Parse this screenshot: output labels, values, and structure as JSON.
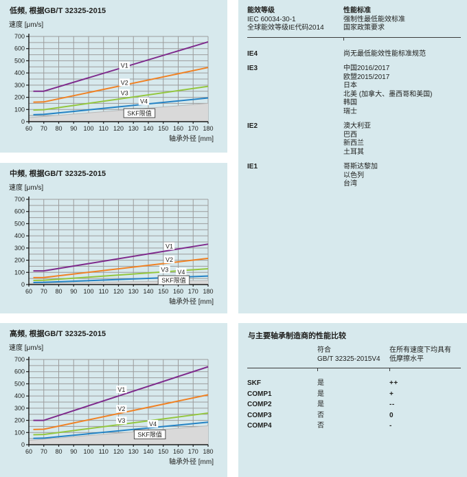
{
  "colors": {
    "panel_bg": "#d7e9ed",
    "grid": "#9b9b9b",
    "axis": "#1a1a1a",
    "limit_fill": "#d9d9d9",
    "limit_edge": "#b9b9b9",
    "label_box_border": "#4d4d4d",
    "text": "#1d1d1b",
    "rule": "#3a3a3a"
  },
  "chart_data": [
    {
      "id": "low-frequency",
      "type": "line",
      "title": "低频, 根据GB/T 32325-2015",
      "y_label": "速度 [μm/s]",
      "x_label": "轴承外径 [mm]",
      "x_range": [
        60,
        180
      ],
      "y_range": [
        0,
        700
      ],
      "x_tick_step": 10,
      "y_tick_step": 100,
      "y_minor_step": 50,
      "grid": "on",
      "series": [
        {
          "name": "V1",
          "color": "#7e2a8c",
          "points": [
            [
              63,
              250
            ],
            [
              70,
              250
            ],
            [
              180,
              655
            ]
          ],
          "label_at": [
            124,
            462
          ]
        },
        {
          "name": "V2",
          "color": "#f08123",
          "points": [
            [
              63,
              160
            ],
            [
              70,
              162
            ],
            [
              180,
              445
            ]
          ],
          "label_at": [
            124,
            322
          ]
        },
        {
          "name": "V3",
          "color": "#93c63e",
          "points": [
            [
              63,
              95
            ],
            [
              70,
              98
            ],
            [
              180,
              290
            ]
          ],
          "label_at": [
            124,
            236
          ]
        },
        {
          "name": "V4",
          "color": "#2382c4",
          "points": [
            [
              63,
              57
            ],
            [
              70,
              60
            ],
            [
              180,
              195
            ]
          ],
          "label_at": [
            137,
            168
          ]
        }
      ],
      "limit_area": {
        "name": "SKF限值",
        "points": [
          [
            60,
            33
          ],
          [
            180,
            150
          ]
        ],
        "label_at": [
          134,
          70
        ]
      }
    },
    {
      "id": "mid-frequency",
      "type": "line",
      "title": "中频, 根据GB/T 32325-2015",
      "y_label": "速度 [μm/s]",
      "x_label": "轴承外径 [mm]",
      "x_range": [
        60,
        180
      ],
      "y_range": [
        0,
        700
      ],
      "x_tick_step": 10,
      "y_tick_step": 100,
      "y_minor_step": 50,
      "grid": "on",
      "series": [
        {
          "name": "V1",
          "color": "#7e2a8c",
          "points": [
            [
              63,
              112
            ],
            [
              70,
              112
            ],
            [
              180,
              332
            ]
          ],
          "label_at": [
            154,
            316
          ]
        },
        {
          "name": "V2",
          "color": "#f08123",
          "points": [
            [
              63,
              57
            ],
            [
              70,
              58
            ],
            [
              180,
              215
            ]
          ],
          "label_at": [
            154,
            206
          ]
        },
        {
          "name": "V3",
          "color": "#93c63e",
          "points": [
            [
              63,
              34
            ],
            [
              70,
              35
            ],
            [
              180,
              130
            ]
          ],
          "label_at": [
            151,
            125
          ]
        },
        {
          "name": "V4",
          "color": "#2382c4",
          "points": [
            [
              63,
              17
            ],
            [
              70,
              18
            ],
            [
              180,
              70
            ]
          ],
          "label_at": [
            162,
            105
          ]
        }
      ],
      "limit_area": {
        "name": "SKF限值",
        "points": [
          [
            60,
            10
          ],
          [
            180,
            33
          ]
        ],
        "label_at": [
          157,
          36
        ]
      }
    },
    {
      "id": "high-frequency",
      "type": "line",
      "title": "高频, 根据GB/T 32325-2015",
      "y_label": "速度 [μm/s]",
      "x_label": "轴承外径 [mm]",
      "x_range": [
        60,
        180
      ],
      "y_range": [
        0,
        700
      ],
      "x_tick_step": 10,
      "y_tick_step": 100,
      "y_minor_step": 50,
      "grid": "on",
      "series": [
        {
          "name": "V1",
          "color": "#7e2a8c",
          "points": [
            [
              63,
              200
            ],
            [
              70,
              200
            ],
            [
              180,
              640
            ]
          ],
          "label_at": [
            122,
            454
          ]
        },
        {
          "name": "V2",
          "color": "#f08123",
          "points": [
            [
              63,
              125
            ],
            [
              70,
              127
            ],
            [
              180,
              410
            ]
          ],
          "label_at": [
            122,
            295
          ]
        },
        {
          "name": "V3",
          "color": "#93c63e",
          "points": [
            [
              63,
              82
            ],
            [
              70,
              84
            ],
            [
              180,
              260
            ]
          ],
          "label_at": [
            122,
            199
          ]
        },
        {
          "name": "V4",
          "color": "#2382c4",
          "points": [
            [
              63,
              52
            ],
            [
              70,
              54
            ],
            [
              180,
              185
            ]
          ],
          "label_at": [
            143,
            172
          ]
        }
      ],
      "limit_area": {
        "name": "SKF限值",
        "points": [
          [
            60,
            35
          ],
          [
            180,
            155
          ]
        ],
        "label_at": [
          141,
          84
        ]
      }
    }
  ],
  "energy_table": {
    "header": {
      "col1": [
        "能效等级",
        "IEC 60034-30-1",
        "全球能效等级IE代码2014"
      ],
      "col2": [
        "性能标准",
        "强制性最低能效标准",
        "国家政策要求"
      ]
    },
    "rows": [
      {
        "level": "IE4",
        "items": [
          "尚无最低能效性能标准规范"
        ]
      },
      {
        "level": "IE3",
        "items": [
          "中国2016/2017",
          "欧盟2015/2017",
          "日本",
          "北美 (加拿大、墨西哥和美国)",
          "韩国",
          "瑞士"
        ]
      },
      {
        "level": "IE2",
        "items": [
          "澳大利亚",
          "巴西",
          "新西兰",
          "土耳其"
        ]
      },
      {
        "level": "IE1",
        "items": [
          "哥斯达黎加",
          "以色列",
          "台湾"
        ]
      }
    ]
  },
  "comparison_table": {
    "title": "与主要轴承制造商的性能比较",
    "col_headers": [
      [
        "符合",
        "GB/T 32325-2015V4"
      ],
      [
        "在所有速度下均具有",
        "低摩擦水平"
      ]
    ],
    "rows": [
      {
        "name": "SKF",
        "compliant": "是",
        "friction": "++"
      },
      {
        "name": "COMP1",
        "compliant": "是",
        "friction": "+"
      },
      {
        "name": "COMP2",
        "compliant": "是",
        "friction": "--"
      },
      {
        "name": "COMP3",
        "compliant": "否",
        "friction": "0"
      },
      {
        "name": "COMP4",
        "compliant": "否",
        "friction": "-"
      }
    ]
  }
}
